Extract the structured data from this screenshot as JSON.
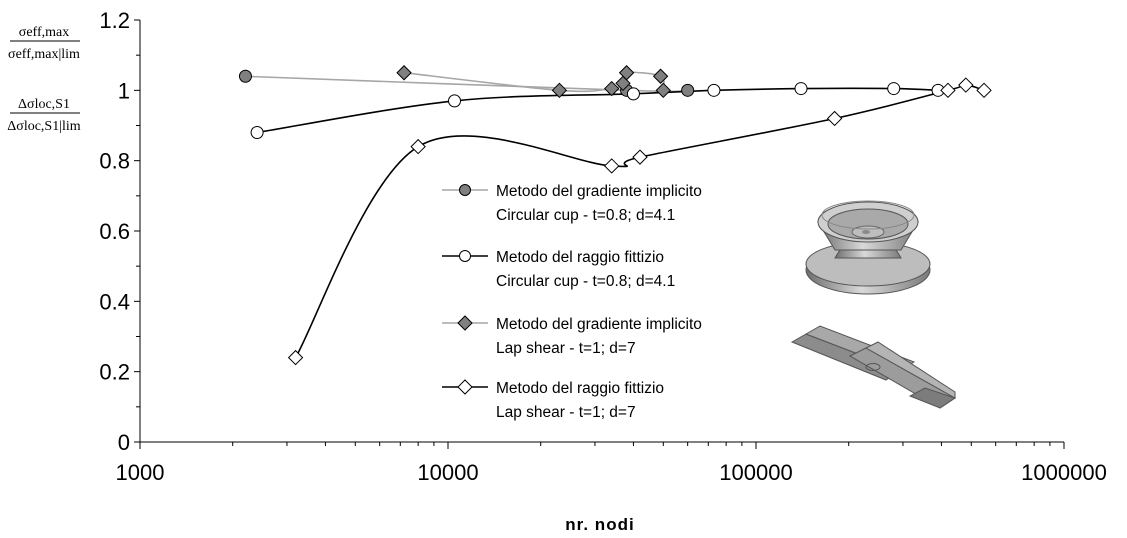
{
  "chart_data": {
    "type": "line",
    "xlabel": "nr. nodi",
    "xscale": "log",
    "xlim": [
      1000,
      1000000
    ],
    "ylim": [
      0,
      1.2
    ],
    "x_tick_labels": [
      "1000",
      "10000",
      "100000",
      "1000000"
    ],
    "y_tick_labels": [
      "0",
      "0.2",
      "0.4",
      "0.6",
      "0.8",
      "1",
      "1.2"
    ],
    "ylabel": {
      "top_numerator": "σeff,max",
      "top_denominator": "σeff,max|lim",
      "bottom_numerator": "Δσloc,S1",
      "bottom_denominator": "Δσloc,S1|lim"
    },
    "series": [
      {
        "name_line1": "Metodo del gradiente implicito",
        "name_line2": "Circular cup - t=0.8; d=4.1",
        "marker": "circle",
        "marker_fill": "#808080",
        "line_color": "#a6a6a6",
        "points": [
          [
            2200,
            1.04
          ],
          [
            38000,
            1.0
          ],
          [
            60000,
            1.0
          ]
        ]
      },
      {
        "name_line1": "Metodo del raggio fittizio",
        "name_line2": "Circular cup - t=0.8; d=4.1",
        "marker": "circle",
        "marker_fill": "#ffffff",
        "line_color": "#000000",
        "points": [
          [
            2400,
            0.88
          ],
          [
            10500,
            0.97
          ],
          [
            40000,
            0.99
          ],
          [
            73000,
            1.0
          ],
          [
            140000,
            1.005
          ],
          [
            280000,
            1.005
          ],
          [
            390000,
            1.0
          ]
        ]
      },
      {
        "name_line1": "Metodo del gradiente implicito",
        "name_line2": "Lap shear - t=1; d=7",
        "marker": "diamond",
        "marker_fill": "#808080",
        "line_color": "#a6a6a6",
        "points": [
          [
            7200,
            1.05
          ],
          [
            23000,
            1.0
          ],
          [
            34000,
            1.005
          ],
          [
            37000,
            1.02
          ],
          [
            38000,
            1.05
          ],
          [
            49000,
            1.04
          ],
          [
            50000,
            1.0
          ]
        ]
      },
      {
        "name_line1": "Metodo del raggio fittizio",
        "name_line2": "Lap shear - t=1; d=7",
        "marker": "diamond",
        "marker_fill": "#ffffff",
        "line_color": "#000000",
        "points": [
          [
            3200,
            0.24
          ],
          [
            8000,
            0.84
          ],
          [
            34000,
            0.785
          ],
          [
            42000,
            0.81
          ],
          [
            180000,
            0.92
          ],
          [
            420000,
            1.0
          ],
          [
            480000,
            1.015
          ],
          [
            550000,
            1.0
          ]
        ]
      }
    ]
  }
}
